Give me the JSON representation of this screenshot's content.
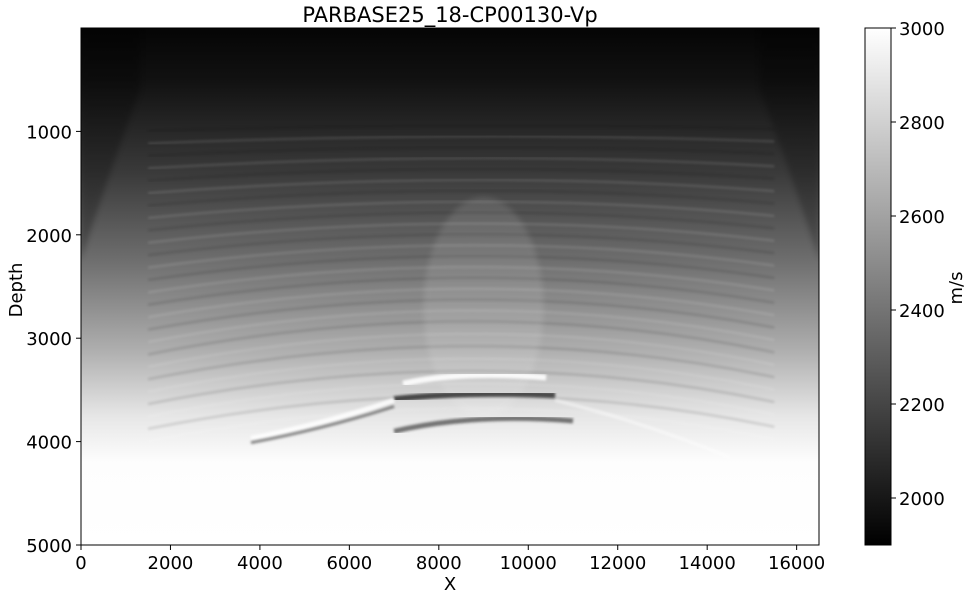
{
  "chart_data": {
    "type": "heatmap",
    "title": "PARBASE25_18-CP00130-Vp",
    "xlabel": "X",
    "ylabel": "Depth",
    "xlim": [
      0,
      16500
    ],
    "ylim": [
      5000,
      0
    ],
    "x_ticks": [
      0,
      2000,
      4000,
      6000,
      8000,
      10000,
      12000,
      14000,
      16000
    ],
    "y_ticks": [
      1000,
      2000,
      3000,
      4000,
      5000
    ],
    "colormap": "gray",
    "colorbar": {
      "label": "m/s",
      "range": [
        1900,
        3000
      ],
      "ticks": [
        2000,
        2200,
        2400,
        2600,
        2800,
        3000
      ]
    },
    "grid": false,
    "features": [
      {
        "name": "bright reflector",
        "x_range": [
          7200,
          10400
        ],
        "depth": 3400
      },
      {
        "name": "lower reflector",
        "x_range": [
          3800,
          7000
        ],
        "depth": 3850
      },
      {
        "name": "dark band",
        "x_range": [
          7000,
          10600
        ],
        "depth": 3550
      }
    ]
  }
}
